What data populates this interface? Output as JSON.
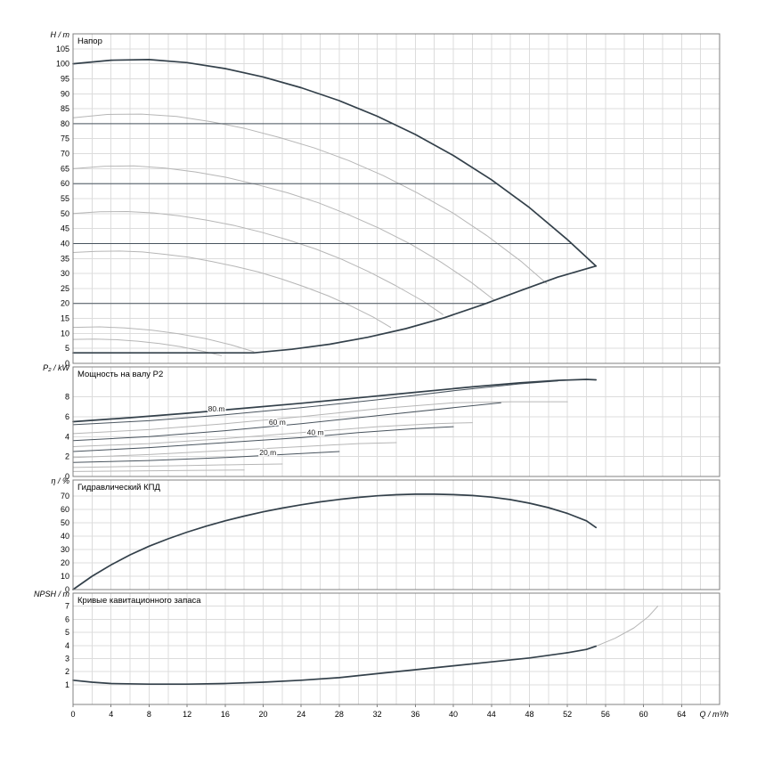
{
  "figure": {
    "background": "#ffffff",
    "grid_color": "#dcdcdc",
    "axis_color": "#808080",
    "curve_dark": "#33404a",
    "curve_thin": "#49545e",
    "curve_gray": "#b6b6b6",
    "label_color": "#222222"
  },
  "x_axis": {
    "label": "Q / m³/h",
    "min": 0,
    "max": 68,
    "grid_step": 2,
    "tick_step": 4,
    "tick_max": 64
  },
  "chart_data": [
    {
      "type": "line",
      "title": "Напор",
      "ylabel": "H / m",
      "ylim": [
        0,
        110
      ],
      "ytick_min": 0,
      "ytick_max": 105,
      "ytick_step": 5,
      "series": [
        {
          "name": "speed-curve-82",
          "style": "gray",
          "points": [
            [
              0,
              82
            ],
            [
              3.6,
              83.1
            ],
            [
              7.2,
              83.2
            ],
            [
              10.9,
              82.4
            ],
            [
              14.5,
              80.7
            ],
            [
              18.1,
              78.4
            ],
            [
              21.7,
              75.4
            ],
            [
              25.4,
              71.9
            ],
            [
              29,
              67.7
            ],
            [
              32.6,
              62.7
            ],
            [
              36.2,
              56.9
            ],
            [
              39.9,
              50.3
            ],
            [
              43.5,
              42.7
            ],
            [
              47.1,
              34.1
            ],
            [
              49.8,
              26.7
            ]
          ]
        },
        {
          "name": "speed-curve-65",
          "style": "gray",
          "points": [
            [
              0,
              65
            ],
            [
              3.2,
              65.8
            ],
            [
              6.4,
              65.9
            ],
            [
              9.7,
              65.2
            ],
            [
              12.9,
              63.9
            ],
            [
              16.1,
              62.1
            ],
            [
              19.3,
              59.7
            ],
            [
              22.6,
              56.9
            ],
            [
              25.8,
              53.6
            ],
            [
              29,
              49.6
            ],
            [
              32.2,
              45.1
            ],
            [
              35.5,
              39.8
            ],
            [
              38.7,
              33.8
            ],
            [
              41.9,
              27
            ],
            [
              44.3,
              21.1
            ]
          ]
        },
        {
          "name": "speed-curve-50",
          "style": "gray",
          "points": [
            [
              0,
              50
            ],
            [
              2.8,
              50.6
            ],
            [
              5.7,
              50.7
            ],
            [
              8.5,
              50.2
            ],
            [
              11.3,
              49.2
            ],
            [
              14.1,
              47.8
            ],
            [
              17,
              46
            ],
            [
              19.8,
              43.8
            ],
            [
              22.6,
              41.2
            ],
            [
              25.5,
              38.2
            ],
            [
              28.3,
              34.7
            ],
            [
              31.1,
              30.6
            ],
            [
              33.9,
              26
            ],
            [
              36.8,
              20.8
            ],
            [
              38.9,
              16.3
            ]
          ]
        },
        {
          "name": "speed-curve-37",
          "style": "gray",
          "points": [
            [
              0,
              37
            ],
            [
              2.4,
              37.4
            ],
            [
              4.9,
              37.5
            ],
            [
              7.3,
              37.2
            ],
            [
              9.7,
              36.4
            ],
            [
              12.2,
              35.4
            ],
            [
              14.6,
              34
            ],
            [
              17,
              32.4
            ],
            [
              19.5,
              30.5
            ],
            [
              21.9,
              28.2
            ],
            [
              24.3,
              25.6
            ],
            [
              26.8,
              22.6
            ],
            [
              29.2,
              19.2
            ],
            [
              31.6,
              15.4
            ],
            [
              33.4,
              12
            ]
          ]
        },
        {
          "name": "speed-curve-12",
          "style": "gray",
          "points": [
            [
              0,
              12
            ],
            [
              2.8,
              12.2
            ],
            [
              5.5,
              11.8
            ],
            [
              8.3,
              11.1
            ],
            [
              11.1,
              9.9
            ],
            [
              13.9,
              8.3
            ],
            [
              16.6,
              6.2
            ],
            [
              19,
              3.9
            ]
          ]
        },
        {
          "name": "speed-curve-8",
          "style": "gray",
          "points": [
            [
              0,
              8
            ],
            [
              2.3,
              8.1
            ],
            [
              4.5,
              7.9
            ],
            [
              6.8,
              7.4
            ],
            [
              9.1,
              6.6
            ],
            [
              11.3,
              5.6
            ],
            [
              13.6,
              4.1
            ],
            [
              15.6,
              2.6
            ]
          ]
        },
        {
          "name": "head-setpoint-80m",
          "style": "thin",
          "points": [
            [
              0,
              80
            ],
            [
              33.6,
              80
            ]
          ]
        },
        {
          "name": "head-setpoint-60m",
          "style": "thin",
          "points": [
            [
              0,
              60
            ],
            [
              44.6,
              60
            ]
          ]
        },
        {
          "name": "head-setpoint-40m",
          "style": "thin",
          "points": [
            [
              0,
              40
            ],
            [
              52.4,
              40
            ]
          ]
        },
        {
          "name": "head-setpoint-20m",
          "style": "thin",
          "points": [
            [
              0,
              20
            ],
            [
              43.6,
              20
            ]
          ]
        },
        {
          "name": "max-speed-curve",
          "style": "dark",
          "points": [
            [
              0,
              100
            ],
            [
              4,
              101.2
            ],
            [
              8,
              101.4
            ],
            [
              12,
              100.4
            ],
            [
              16,
              98.4
            ],
            [
              20,
              95.6
            ],
            [
              24,
              92
            ],
            [
              28,
              87.7
            ],
            [
              32,
              82.5
            ],
            [
              36,
              76.4
            ],
            [
              40,
              69.4
            ],
            [
              44,
              61.3
            ],
            [
              48,
              52
            ],
            [
              52,
              41.3
            ],
            [
              55,
              32.5
            ]
          ]
        },
        {
          "name": "min-speed-envelope",
          "style": "dark",
          "points": [
            [
              0,
              3.5
            ],
            [
              10,
              3.5
            ],
            [
              19,
              3.5
            ],
            [
              23,
              4.7
            ],
            [
              27,
              6.4
            ],
            [
              31,
              8.7
            ],
            [
              35,
              11.6
            ],
            [
              39,
              15.2
            ],
            [
              43,
              19.5
            ],
            [
              47,
              24.2
            ],
            [
              51,
              28.8
            ],
            [
              55,
              32.5
            ]
          ]
        }
      ]
    },
    {
      "type": "line",
      "title": "Мощность на валу P2",
      "ylabel": "P₂ / kW",
      "ylim": [
        0,
        11
      ],
      "ytick_min": 0,
      "ytick_max": 8,
      "ytick_step": 2,
      "series": [
        {
          "name": "p2-curve-a",
          "style": "gray",
          "points": [
            [
              0,
              4.3
            ],
            [
              8,
              4.7
            ],
            [
              16,
              5.3
            ],
            [
              24,
              6
            ],
            [
              32,
              6.8
            ],
            [
              40,
              7.4
            ],
            [
              46,
              7.5
            ],
            [
              52,
              7.5
            ]
          ]
        },
        {
          "name": "p2-curve-b",
          "style": "gray",
          "points": [
            [
              0,
              3
            ],
            [
              8,
              3.3
            ],
            [
              16,
              3.8
            ],
            [
              24,
              4.4
            ],
            [
              32,
              5
            ],
            [
              38,
              5.3
            ],
            [
              42,
              5.4
            ]
          ]
        },
        {
          "name": "p2-curve-c",
          "style": "gray",
          "points": [
            [
              0,
              1.9
            ],
            [
              8,
              2.2
            ],
            [
              16,
              2.6
            ],
            [
              24,
              3
            ],
            [
              30,
              3.3
            ],
            [
              34,
              3.4
            ]
          ]
        },
        {
          "name": "p2-curve-d",
          "style": "gray",
          "points": [
            [
              0,
              0.9
            ],
            [
              6,
              1
            ],
            [
              12,
              1.1
            ],
            [
              18,
              1.2
            ],
            [
              22,
              1.25
            ]
          ]
        },
        {
          "name": "p2-curve-e",
          "style": "gray",
          "points": [
            [
              0,
              0.5
            ],
            [
              6,
              0.55
            ],
            [
              12,
              0.6
            ],
            [
              18,
              0.65
            ]
          ]
        },
        {
          "name": "p2-80m",
          "style": "thin",
          "points": [
            [
              0,
              5.2
            ],
            [
              8,
              5.6
            ],
            [
              16,
              6.2
            ],
            [
              24,
              6.9
            ],
            [
              32,
              7.7
            ],
            [
              40,
              8.6
            ],
            [
              47,
              9.3
            ],
            [
              51,
              9.6
            ]
          ]
        },
        {
          "name": "p2-60m",
          "style": "thin",
          "points": [
            [
              0,
              3.6
            ],
            [
              8,
              4
            ],
            [
              16,
              4.6
            ],
            [
              24,
              5.3
            ],
            [
              32,
              6.1
            ],
            [
              40,
              6.9
            ],
            [
              45,
              7.4
            ]
          ]
        },
        {
          "name": "p2-40m",
          "style": "thin",
          "points": [
            [
              0,
              2.5
            ],
            [
              8,
              2.9
            ],
            [
              16,
              3.4
            ],
            [
              24,
              3.9
            ],
            [
              30,
              4.4
            ],
            [
              36,
              4.8
            ],
            [
              40,
              5
            ]
          ]
        },
        {
          "name": "p2-20m",
          "style": "thin",
          "points": [
            [
              0,
              1.4
            ],
            [
              8,
              1.6
            ],
            [
              16,
              1.9
            ],
            [
              24,
              2.3
            ],
            [
              28,
              2.5
            ]
          ]
        },
        {
          "name": "p2-max-speed",
          "style": "dark",
          "points": [
            [
              0,
              5.5
            ],
            [
              6,
              5.9
            ],
            [
              12,
              6.35
            ],
            [
              18,
              6.85
            ],
            [
              24,
              7.35
            ],
            [
              30,
              7.9
            ],
            [
              36,
              8.45
            ],
            [
              42,
              9
            ],
            [
              47,
              9.4
            ],
            [
              51,
              9.65
            ],
            [
              54,
              9.75
            ],
            [
              55,
              9.7
            ]
          ]
        }
      ],
      "labels": [
        {
          "text": "80 m",
          "q": 14.2,
          "v": 6.55
        },
        {
          "text": "60 m",
          "q": 20.6,
          "v": 5.2
        },
        {
          "text": "40 m",
          "q": 24.6,
          "v": 4.15
        },
        {
          "text": "20 m",
          "q": 19.6,
          "v": 2.15
        }
      ]
    },
    {
      "type": "line",
      "title": "Гидравлический КПД",
      "ylabel": "η / %",
      "ylim": [
        0,
        82
      ],
      "ytick_min": 0,
      "ytick_max": 70,
      "ytick_step": 10,
      "series": [
        {
          "name": "efficiency-curve",
          "style": "dark",
          "points": [
            [
              0,
              0
            ],
            [
              2,
              10
            ],
            [
              4,
              18.5
            ],
            [
              6,
              26
            ],
            [
              8,
              32.5
            ],
            [
              10,
              38
            ],
            [
              12,
              43
            ],
            [
              14,
              47.5
            ],
            [
              16,
              51.5
            ],
            [
              18,
              55
            ],
            [
              20,
              58.2
            ],
            [
              22,
              61
            ],
            [
              24,
              63.5
            ],
            [
              26,
              65.7
            ],
            [
              28,
              67.5
            ],
            [
              30,
              69
            ],
            [
              32,
              70.2
            ],
            [
              34,
              71
            ],
            [
              36,
              71.4
            ],
            [
              38,
              71.4
            ],
            [
              40,
              71.1
            ],
            [
              42,
              70.4
            ],
            [
              44,
              69.2
            ],
            [
              46,
              67.3
            ],
            [
              48,
              64.7
            ],
            [
              50,
              61.3
            ],
            [
              52,
              57
            ],
            [
              54,
              51.5
            ],
            [
              55,
              46.5
            ]
          ]
        }
      ]
    },
    {
      "type": "line",
      "title": "Кривые кавитационного запаса",
      "ylabel": "NPSH / m",
      "ylim": [
        -0.5,
        8
      ],
      "ytick_min": 1,
      "ytick_max": 7,
      "ytick_step": 1,
      "series": [
        {
          "name": "npsh-extension",
          "style": "gray",
          "points": [
            [
              55,
              3.95
            ],
            [
              57,
              4.55
            ],
            [
              59,
              5.35
            ],
            [
              60.5,
              6.2
            ],
            [
              61.5,
              7
            ]
          ]
        },
        {
          "name": "npsh-curve",
          "style": "dark",
          "points": [
            [
              0,
              1.35
            ],
            [
              2,
              1.2
            ],
            [
              4,
              1.1
            ],
            [
              8,
              1.05
            ],
            [
              12,
              1.05
            ],
            [
              16,
              1.1
            ],
            [
              20,
              1.2
            ],
            [
              24,
              1.35
            ],
            [
              28,
              1.55
            ],
            [
              32,
              1.85
            ],
            [
              36,
              2.15
            ],
            [
              40,
              2.45
            ],
            [
              44,
              2.75
            ],
            [
              48,
              3.05
            ],
            [
              52,
              3.45
            ],
            [
              54,
              3.7
            ],
            [
              55,
              3.95
            ]
          ]
        }
      ]
    }
  ]
}
